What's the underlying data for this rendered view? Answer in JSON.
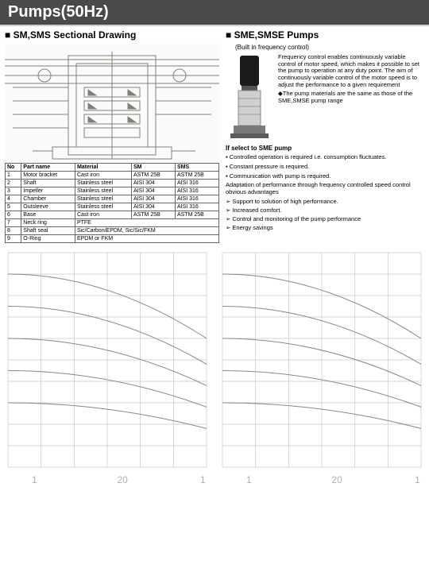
{
  "header": {
    "title": "Pumps(50Hz)"
  },
  "left_section": {
    "title": "SM,SMS Sectional Drawing"
  },
  "right_section": {
    "title": "SME,SMSE Pumps",
    "subtitle": "(Built in frequency control)",
    "intro": "Frequency control enables continuously variable control of motor speed, which makes it possible to set the pump to operation at any duty point. The aim of continuously variable control of the motor speed is to adjust the performance to a given requirement",
    "diamond_note": "The pump materials are the same as those of the SME,SMSE pump range",
    "select_head": "If select to SME pump",
    "bullets": [
      "Controlled operation is required i.e. consumption fluctuates.",
      "Constant pressure is required.",
      "Communication with pump is required."
    ],
    "adapt": "Adaptation of performance through frequency controlled speed control obvious advantages",
    "arrows": [
      "Support to solution of high performance.",
      "Increased comfort.",
      "Control and monitoring of the pump performance",
      "Energy savings"
    ]
  },
  "parts_table": {
    "columns": [
      "No",
      "Part name",
      "Material",
      "SM",
      "SMS"
    ],
    "rows": [
      [
        "1",
        "Motor bracket",
        "Cast iron",
        "ASTM 25B",
        "ASTM 25B"
      ],
      [
        "2",
        "Shaft",
        "Stainless steel",
        "AISI 304",
        "AISI 316"
      ],
      [
        "3",
        "Impeller",
        "Stainless steel",
        "AISI 304",
        "AISI 316"
      ],
      [
        "4",
        "Chamber",
        "Stainless steel",
        "AISI 304",
        "AISI 316"
      ],
      [
        "5",
        "Outsleeve",
        "Stainless steel",
        "AISI 304",
        "AISI 316"
      ],
      [
        "6",
        "Base",
        "Cast iron",
        "ASTM 25B",
        "ASTM 25B"
      ],
      [
        "7",
        "Neck ring",
        "PTFE",
        "",
        ""
      ],
      [
        "8",
        "Shaft seal",
        "Sic/Carbon/EPDM, Sic/Sic/FKM",
        "",
        ""
      ],
      [
        "9",
        "O-Ring",
        "EPDM or FKM",
        "",
        ""
      ]
    ]
  },
  "drawing_style": {
    "line_color": "#808078",
    "bg": "#fafafa",
    "line_width": 1
  },
  "pump_image": {
    "motor_color": "#1a1a1a",
    "body_color": "#cfcfcf",
    "base_color": "#7a7a7a"
  },
  "charts": {
    "grid_color": "#c8c8c0",
    "axis_text_color": "#b0b0a8",
    "line_colors": [
      "#888880",
      "#888880",
      "#888880",
      "#888880",
      "#888880"
    ],
    "axis_fontsize": 12,
    "x_labels": [
      "1",
      "20",
      "1"
    ],
    "y_range": [
      0,
      100
    ],
    "series": [
      {
        "points": [
          [
            0,
            90
          ],
          [
            100,
            60
          ]
        ]
      },
      {
        "points": [
          [
            0,
            75
          ],
          [
            100,
            48
          ]
        ]
      },
      {
        "points": [
          [
            0,
            60
          ],
          [
            100,
            38
          ]
        ]
      },
      {
        "points": [
          [
            0,
            45
          ],
          [
            100,
            28
          ]
        ]
      },
      {
        "points": [
          [
            0,
            30
          ],
          [
            100,
            18
          ]
        ]
      }
    ]
  }
}
